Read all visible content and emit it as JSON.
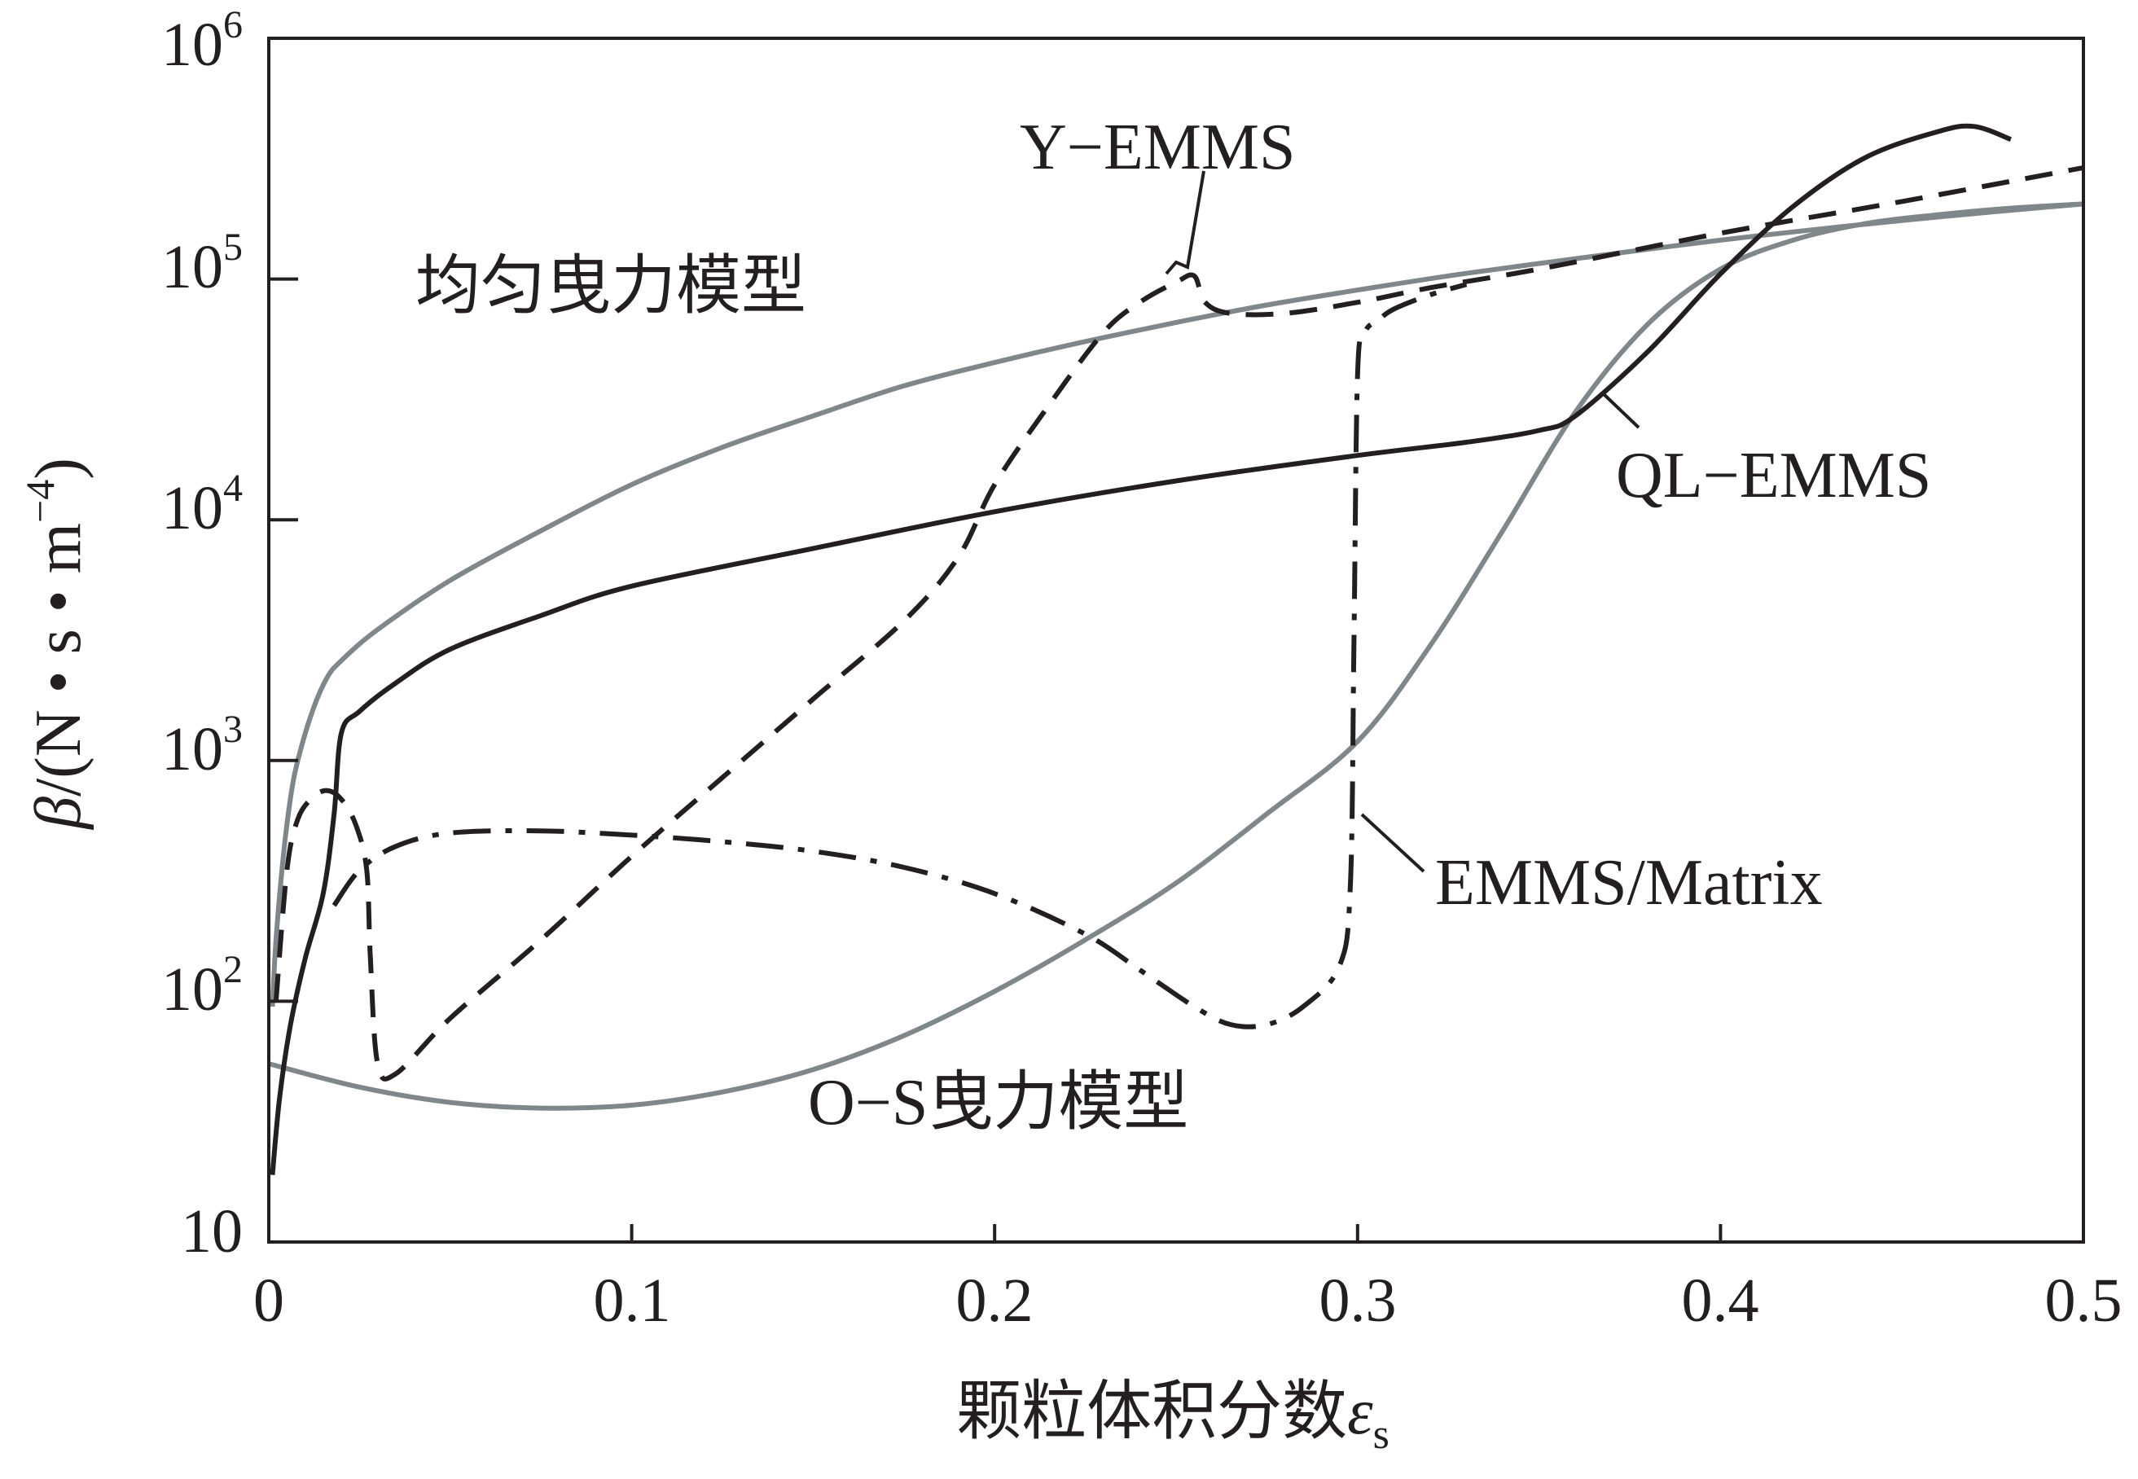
{
  "chart_data": {
    "type": "line",
    "xlabel": "颗粒体积分数",
    "xlabel_symbol": "ε",
    "xlabel_subscript": "s",
    "ylabel_symbol": "β",
    "ylabel_unit_prefix": "/(N • s • m",
    "ylabel_unit_exp": "−4",
    "ylabel_unit_suffix": ")",
    "xlim": [
      0,
      0.5
    ],
    "ylim": [
      10,
      1000000
    ],
    "yscale": "log",
    "grid": false,
    "x_ticks": [
      0,
      0.1,
      0.2,
      0.3,
      0.4,
      0.5
    ],
    "x_tick_labels": [
      "0",
      "0.1",
      "0.2",
      "0.3",
      "0.4",
      "0.5"
    ],
    "y_ticks": [
      10,
      100,
      1000,
      10000,
      100000,
      1000000
    ],
    "y_tick_labels": [
      {
        "base": "10",
        "exp": ""
      },
      {
        "base": "10",
        "exp": "2"
      },
      {
        "base": "10",
        "exp": "3"
      },
      {
        "base": "10",
        "exp": "4"
      },
      {
        "base": "10",
        "exp": "5"
      },
      {
        "base": "10",
        "exp": "6"
      }
    ],
    "colors": {
      "black": "#231f20",
      "gray": "#7f878b"
    },
    "series": [
      {
        "name": "均匀曳力模型",
        "style": "gray-solid",
        "points": [
          [
            0.001,
            95
          ],
          [
            0.002,
            180
          ],
          [
            0.004,
            400
          ],
          [
            0.006,
            700
          ],
          [
            0.008,
            1000
          ],
          [
            0.012,
            1600
          ],
          [
            0.016,
            2200
          ],
          [
            0.02,
            2600
          ],
          [
            0.03,
            3500
          ],
          [
            0.05,
            5600
          ],
          [
            0.075,
            9000
          ],
          [
            0.1,
            14000
          ],
          [
            0.125,
            20000
          ],
          [
            0.15,
            27000
          ],
          [
            0.175,
            36000
          ],
          [
            0.2,
            45000
          ],
          [
            0.225,
            55000
          ],
          [
            0.25,
            66000
          ],
          [
            0.275,
            78000
          ],
          [
            0.3,
            90000
          ],
          [
            0.325,
            103000
          ],
          [
            0.35,
            116000
          ],
          [
            0.375,
            130000
          ],
          [
            0.4,
            145000
          ],
          [
            0.425,
            160000
          ],
          [
            0.45,
            175000
          ],
          [
            0.475,
            190000
          ],
          [
            0.5,
            205000
          ]
        ]
      },
      {
        "name": "O-S曳力模型",
        "style": "gray-solid",
        "points": [
          [
            0.0,
            55
          ],
          [
            0.025,
            44
          ],
          [
            0.05,
            38
          ],
          [
            0.075,
            36
          ],
          [
            0.1,
            37
          ],
          [
            0.125,
            42
          ],
          [
            0.15,
            52
          ],
          [
            0.175,
            72
          ],
          [
            0.2,
            110
          ],
          [
            0.225,
            180
          ],
          [
            0.25,
            310
          ],
          [
            0.275,
            600
          ],
          [
            0.3,
            1200
          ],
          [
            0.32,
            3000
          ],
          [
            0.34,
            9000
          ],
          [
            0.36,
            28000
          ],
          [
            0.38,
            65000
          ],
          [
            0.4,
            110000
          ],
          [
            0.42,
            145000
          ],
          [
            0.44,
            170000
          ],
          [
            0.46,
            185000
          ],
          [
            0.48,
            197000
          ],
          [
            0.5,
            205000
          ]
        ]
      },
      {
        "name": "Y-EMMS",
        "style": "black-dashed",
        "points": [
          [
            0.002,
            100
          ],
          [
            0.005,
            350
          ],
          [
            0.008,
            570
          ],
          [
            0.012,
            700
          ],
          [
            0.016,
            750
          ],
          [
            0.02,
            690
          ],
          [
            0.024,
            540
          ],
          [
            0.027,
            350
          ],
          [
            0.028,
            150
          ],
          [
            0.03,
            55
          ],
          [
            0.035,
            50
          ],
          [
            0.05,
            85
          ],
          [
            0.075,
            180
          ],
          [
            0.1,
            400
          ],
          [
            0.125,
            850
          ],
          [
            0.15,
            1800
          ],
          [
            0.175,
            3800
          ],
          [
            0.19,
            7000
          ],
          [
            0.2,
            14000
          ],
          [
            0.215,
            30000
          ],
          [
            0.23,
            60000
          ],
          [
            0.24,
            80000
          ],
          [
            0.25,
            97000
          ],
          [
            0.255,
            103000
          ],
          [
            0.258,
            80000
          ],
          [
            0.265,
            72000
          ],
          [
            0.28,
            72000
          ],
          [
            0.3,
            80000
          ],
          [
            0.32,
            92000
          ],
          [
            0.35,
            110000
          ],
          [
            0.4,
            155000
          ],
          [
            0.45,
            210000
          ],
          [
            0.5,
            290000
          ]
        ]
      },
      {
        "name": "QL-EMMS",
        "style": "black-solid",
        "points": [
          [
            0.001,
            19
          ],
          [
            0.003,
            40
          ],
          [
            0.006,
            80
          ],
          [
            0.01,
            150
          ],
          [
            0.015,
            280
          ],
          [
            0.018,
            600
          ],
          [
            0.02,
            1300
          ],
          [
            0.025,
            1600
          ],
          [
            0.035,
            2100
          ],
          [
            0.05,
            2900
          ],
          [
            0.075,
            4000
          ],
          [
            0.1,
            5300
          ],
          [
            0.15,
            7600
          ],
          [
            0.2,
            10800
          ],
          [
            0.25,
            14500
          ],
          [
            0.3,
            18500
          ],
          [
            0.33,
            21000
          ],
          [
            0.35,
            23500
          ],
          [
            0.36,
            27000
          ],
          [
            0.38,
            50000
          ],
          [
            0.4,
            105000
          ],
          [
            0.42,
            200000
          ],
          [
            0.44,
            320000
          ],
          [
            0.46,
            410000
          ],
          [
            0.47,
            430000
          ],
          [
            0.48,
            380000
          ]
        ]
      },
      {
        "name": "EMMS/Matrix",
        "style": "black-dashdot",
        "points": [
          [
            0.018,
            250
          ],
          [
            0.025,
            350
          ],
          [
            0.035,
            440
          ],
          [
            0.05,
            500
          ],
          [
            0.075,
            510
          ],
          [
            0.1,
            490
          ],
          [
            0.125,
            460
          ],
          [
            0.15,
            420
          ],
          [
            0.175,
            360
          ],
          [
            0.2,
            280
          ],
          [
            0.225,
            190
          ],
          [
            0.24,
            135
          ],
          [
            0.255,
            95
          ],
          [
            0.265,
            80
          ],
          [
            0.275,
            80
          ],
          [
            0.285,
            95
          ],
          [
            0.295,
            140
          ],
          [
            0.298,
            300
          ],
          [
            0.299,
            3000
          ],
          [
            0.3,
            40000
          ],
          [
            0.302,
            60000
          ],
          [
            0.306,
            68000
          ],
          [
            0.31,
            75000
          ],
          [
            0.32,
            86000
          ],
          [
            0.33,
            95000
          ]
        ]
      }
    ],
    "annotations": [
      {
        "text": "均匀曳力模型",
        "series": "均匀曳力模型"
      },
      {
        "text": "Y−EMMS",
        "series": "Y-EMMS"
      },
      {
        "text": "QL−EMMS",
        "series": "QL-EMMS"
      },
      {
        "text": "EMMS/Matrix",
        "series": "EMMS/Matrix"
      },
      {
        "text": "O−S曳力模型",
        "series": "O-S曳力模型"
      }
    ]
  }
}
